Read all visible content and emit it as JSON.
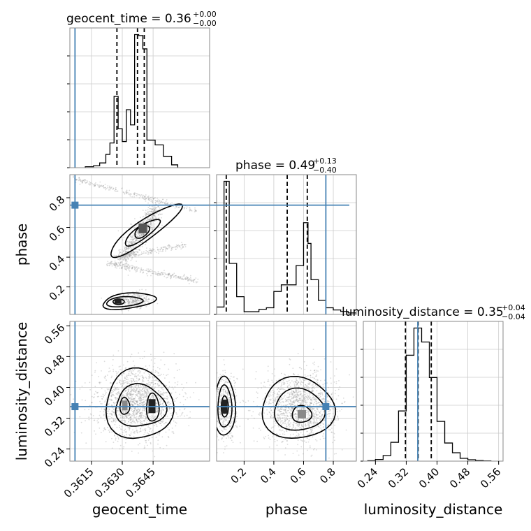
{
  "chart_data": {
    "type": "corner",
    "parameters": [
      "geocent_time",
      "phase",
      "luminosity_distance"
    ],
    "titles": {
      "geocent_time": {
        "label": "geocent_time = 0.36",
        "sup": "+0.00",
        "sub": "−0.00"
      },
      "phase": {
        "label": "phase = 0.49",
        "sup": "+0.13",
        "sub": "−0.40"
      },
      "luminosity_distance": {
        "label": "luminosity_distance = 0.35",
        "sup": "+0.04",
        "sub": "−0.04"
      }
    },
    "axis_labels": {
      "x": [
        "geocent_time",
        "phase",
        "luminosity_distance"
      ],
      "y": [
        "phase",
        "luminosity_distance"
      ]
    },
    "ranges": {
      "geocent_time": [
        0.36045,
        0.36725
      ],
      "phase": [
        0.015,
        0.955
      ],
      "luminosity_distance": [
        0.2085,
        0.5715
      ]
    },
    "ticks": {
      "geocent_time": [
        {
          "v": 0.3615,
          "label": "0.3615"
        },
        {
          "v": 0.363,
          "label": "0.3630"
        },
        {
          "v": 0.3645,
          "label": "0.3645"
        }
      ],
      "phase": [
        {
          "v": 0.2,
          "label": "0.2"
        },
        {
          "v": 0.4,
          "label": "0.4"
        },
        {
          "v": 0.6,
          "label": "0.6"
        },
        {
          "v": 0.8,
          "label": "0.8"
        }
      ],
      "luminosity_distance": [
        {
          "v": 0.24,
          "label": "0.24"
        },
        {
          "v": 0.32,
          "label": "0.32"
        },
        {
          "v": 0.4,
          "label": "0.40"
        },
        {
          "v": 0.48,
          "label": "0.48"
        },
        {
          "v": 0.56,
          "label": "0.56"
        }
      ]
    },
    "truths": {
      "geocent_time": 0.3607,
      "phase": 0.75,
      "luminosity_distance": 0.35
    },
    "quantiles": {
      "geocent_time": [
        0.36274,
        0.36374,
        0.36407
      ],
      "phase": [
        0.08,
        0.49,
        0.625
      ],
      "luminosity_distance": [
        0.318,
        0.351,
        0.385
      ]
    },
    "histograms": {
      "geocent_time": {
        "bins": [
          0.3612,
          0.3616,
          0.3619,
          0.3622,
          0.3624,
          0.3626,
          0.3628,
          0.363,
          0.3632,
          0.3634,
          0.3636,
          0.3638,
          0.364,
          0.3642,
          0.3646,
          0.365,
          0.3654,
          0.3657
        ],
        "counts": [
          2,
          4,
          10,
          28,
          52,
          150,
          82,
          55,
          122,
          90,
          280,
          278,
          250,
          58,
          48,
          24,
          6
        ]
      },
      "phase": {
        "bins": [
          0.015,
          0.065,
          0.1,
          0.15,
          0.2,
          0.25,
          0.3,
          0.35,
          0.4,
          0.45,
          0.5,
          0.55,
          0.6,
          0.63,
          0.65,
          0.7,
          0.75,
          0.8,
          0.85,
          0.9,
          0.955
        ],
        "counts": [
          50,
          900,
          345,
          120,
          18,
          18,
          35,
          45,
          155,
          200,
          200,
          330,
          620,
          480,
          235,
          95,
          45,
          30,
          20,
          10
        ]
      },
      "luminosity_distance": {
        "bins": [
          0.22,
          0.24,
          0.26,
          0.28,
          0.3,
          0.32,
          0.34,
          0.36,
          0.38,
          0.4,
          0.42,
          0.44,
          0.46,
          0.48,
          0.5,
          0.52,
          0.54
        ],
        "counts": [
          3,
          12,
          40,
          135,
          360,
          760,
          955,
          855,
          600,
          285,
          130,
          60,
          20,
          10,
          4,
          2
        ]
      }
    },
    "contour_levels": 3,
    "colors": {
      "truth": "#4682b4",
      "contour": "#000000",
      "scatter": "#999999",
      "grid": "#cccccc",
      "frame": "#888888"
    }
  }
}
